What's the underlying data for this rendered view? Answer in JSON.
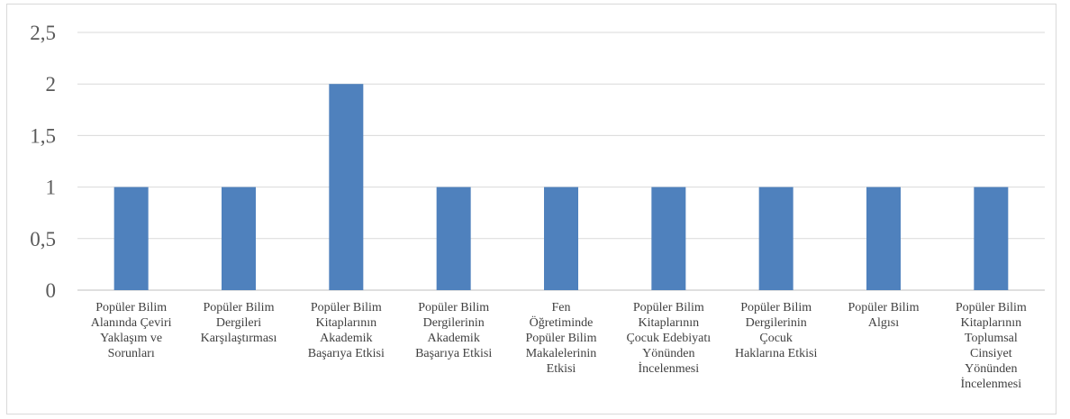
{
  "chart_data": {
    "type": "bar",
    "categories": [
      [
        "Popüler Bilim",
        "Alanında Çeviri",
        "Yaklaşım ve",
        "Sorunları"
      ],
      [
        "Popüler Bilim",
        "Dergileri",
        "Karşılaştırması"
      ],
      [
        "Popüler Bilim",
        "Kitaplarının",
        "Akademik",
        "Başarıya Etkisi"
      ],
      [
        "Popüler Bilim",
        "Dergilerinin",
        "Akademik",
        "Başarıya Etkisi"
      ],
      [
        "Fen",
        "Öğretiminde",
        "Popüler Bilim",
        "Makalelerinin",
        "Etkisi"
      ],
      [
        "Popüler Bilim",
        "Kitaplarının",
        "Çocuk Edebiyatı",
        "Yönünden",
        "İncelenmesi"
      ],
      [
        "Popüler Bilim",
        "Dergilerinin",
        "Çocuk",
        "Haklarına Etkisi"
      ],
      [
        "Popüler Bilim",
        "Algısı"
      ],
      [
        "Popüler Bilim",
        "Kitaplarının",
        "Toplumsal",
        "Cinsiyet",
        "Yönünden",
        "İncelenmesi"
      ]
    ],
    "values": [
      1,
      1,
      2,
      1,
      1,
      1,
      1,
      1,
      1
    ],
    "ylim": [
      0,
      2.5
    ],
    "yticks": [
      "0",
      "0,5",
      "1",
      "1,5",
      "2",
      "2,5"
    ],
    "grid": true,
    "colors": {
      "bar": "#4f81bd"
    }
  }
}
